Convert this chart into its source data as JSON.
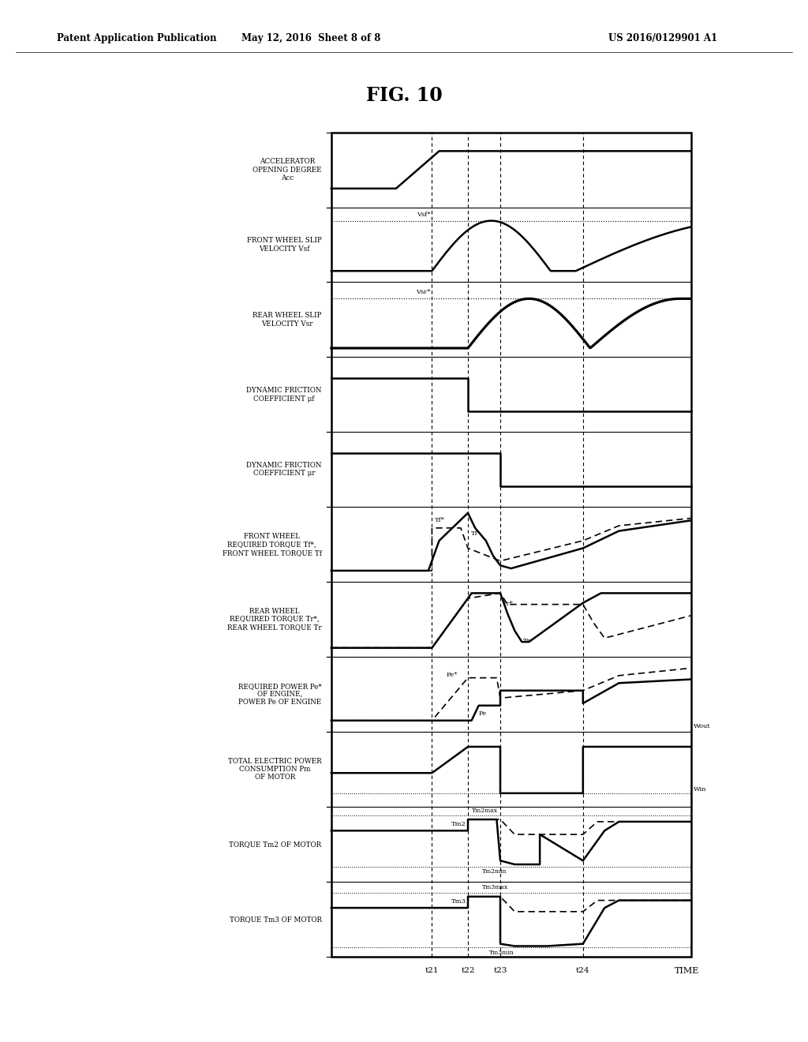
{
  "title": "FIG. 10",
  "header_left": "Patent Application Publication",
  "header_mid": "May 12, 2016  Sheet 8 of 8",
  "header_right": "US 2016/0129901 A1",
  "background_color": "#ffffff",
  "text_color": "#000000",
  "row_labels": [
    "ACCELERATOR\nOPENING DEGREE\nAcc",
    "FRONT WHEEL SLIP\nVELOCITY Vsf",
    "REAR WHEEL SLIP\nVELOCITY Vsr",
    "DYNAMIC FRICTION\nCOEFFICIENT μf",
    "DYNAMIC FRICTION\nCOEFFICIENT μr",
    "FRONT WHEEL\nREQUIRED TORQUE Tf*,\nFRONT WHEEL TORQUE Tf",
    "REAR WHEEL\nREQUIRED TORQUE Tr*,\nREAR WHEEL TORQUE Tr",
    "REQUIRED POWER Pe*\nOF ENGINE,\nPOWER Pe OF ENGINE",
    "TOTAL ELECTRIC POWER\nCONSUMPTION Pm\nOF MOTOR",
    "TORQUE Tm2 OF MOTOR",
    "TORQUE Tm3 OF MOTOR"
  ],
  "time_labels": [
    "t21",
    "t22",
    "t23",
    "t24",
    "TIME"
  ],
  "t21": 0.28,
  "t22": 0.38,
  "t23": 0.47,
  "t24": 0.7
}
